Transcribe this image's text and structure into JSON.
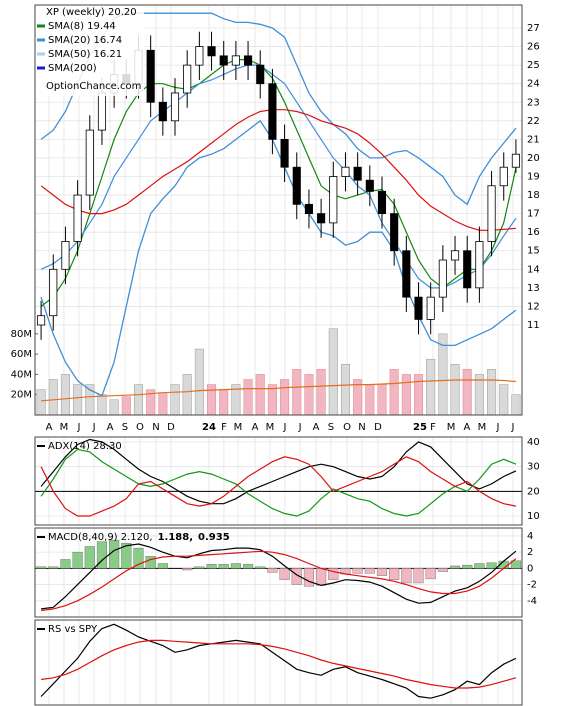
{
  "chart_data": [
    {
      "type": "candlestick",
      "title": "XP (weekly) 20.20",
      "watermark": "OptionChance.com",
      "xlim": [
        -0.5,
        39.5
      ],
      "xticks": [
        {
          "value": 0.65,
          "label": "A"
        },
        {
          "value": 1.88,
          "label": "M"
        },
        {
          "value": 3.11,
          "label": "J"
        },
        {
          "value": 4.35,
          "label": "J"
        },
        {
          "value": 5.66,
          "label": "A"
        },
        {
          "value": 6.89,
          "label": "S"
        },
        {
          "value": 8.12,
          "label": "O"
        },
        {
          "value": 9.44,
          "label": "N"
        },
        {
          "value": 10.67,
          "label": "D"
        },
        {
          "value": 13.79,
          "label": "24"
        },
        {
          "value": 15.02,
          "label": "F"
        },
        {
          "value": 16.17,
          "label": "M"
        },
        {
          "value": 17.57,
          "label": "A"
        },
        {
          "value": 18.8,
          "label": "M"
        },
        {
          "value": 20.03,
          "label": "J"
        },
        {
          "value": 21.27,
          "label": "J"
        },
        {
          "value": 22.58,
          "label": "A"
        },
        {
          "value": 23.81,
          "label": "S"
        },
        {
          "value": 25.13,
          "label": "O"
        },
        {
          "value": 26.36,
          "label": "N"
        },
        {
          "value": 27.67,
          "label": "D"
        },
        {
          "value": 31.12,
          "label": "25"
        },
        {
          "value": 32.19,
          "label": "F"
        },
        {
          "value": 33.67,
          "label": "M"
        },
        {
          "value": 34.98,
          "label": "A"
        },
        {
          "value": 36.21,
          "label": "M"
        },
        {
          "value": 37.53,
          "label": "J"
        },
        {
          "value": 38.76,
          "label": "J"
        }
      ],
      "ylim": [
        6.15,
        28.24
      ],
      "yticks": [
        11,
        12,
        13,
        14,
        15,
        16,
        17,
        18,
        19,
        20,
        21,
        22,
        23,
        24,
        25,
        26,
        27
      ],
      "open": [
        11,
        11.5,
        14,
        15.5,
        18,
        21.5,
        23.5,
        24.5,
        24,
        25.8,
        23,
        22,
        23.5,
        25,
        26,
        25.5,
        25,
        25.5,
        25,
        24,
        21,
        19.5,
        17.5,
        17,
        16.5,
        19,
        19.5,
        18.8,
        18.2,
        17,
        15,
        12.5,
        11.3,
        12.5,
        14.5,
        15,
        13,
        15.5,
        18.5,
        19.5
      ],
      "high": [
        12.3,
        14.8,
        16.3,
        18.8,
        22.3,
        24.3,
        25.3,
        25.3,
        26.6,
        26.6,
        23.8,
        24.3,
        25.8,
        26.8,
        26.8,
        26.3,
        26.3,
        26.3,
        25.8,
        24.8,
        21.8,
        20.3,
        18.3,
        17.8,
        19.8,
        20.3,
        20.3,
        19.6,
        19,
        17.8,
        15.8,
        13.3,
        13.3,
        15.3,
        15.8,
        15.8,
        16.3,
        19.3,
        20.3,
        21
      ],
      "low": [
        10.2,
        10.7,
        13.2,
        14.7,
        17.2,
        20.7,
        22.7,
        23.2,
        23.2,
        22.2,
        21.2,
        21.2,
        22.7,
        24.2,
        24.7,
        24.2,
        24.2,
        24.2,
        23.2,
        20.2,
        18.7,
        16.7,
        16.2,
        15.7,
        15.7,
        18.2,
        18,
        17.4,
        16.2,
        14.2,
        11.7,
        10.5,
        10.5,
        11.7,
        13.7,
        12.2,
        12.2,
        14.7,
        17.7,
        19.2
      ],
      "close": [
        11.5,
        14,
        15.5,
        18,
        21.5,
        23.5,
        24.5,
        24,
        25.8,
        23,
        22,
        23.5,
        25,
        26,
        25.5,
        25,
        25.5,
        25,
        24,
        21,
        19.5,
        17.5,
        17,
        16.5,
        19,
        19.5,
        18.8,
        18.2,
        17,
        15,
        12.5,
        11.3,
        12.5,
        14.5,
        15,
        13,
        15.5,
        18.5,
        19.5,
        20.2
      ],
      "up_color": "#ffffff",
      "down_color": "#000000",
      "bands": {
        "color": "#3d8fd6",
        "upper": [
          21,
          21.5,
          22.5,
          24,
          25.5,
          26.5,
          27.5,
          27.8,
          27.8,
          27.8,
          27.8,
          27.8,
          27.8,
          27.8,
          27.8,
          27.5,
          27.3,
          27.3,
          27.2,
          27,
          26.5,
          25,
          23.5,
          22.5,
          21.8,
          21.3,
          20.5,
          20,
          20,
          20.3,
          20.4,
          20,
          19.5,
          19,
          18,
          17.5,
          19,
          20,
          20.8,
          21.6
        ],
        "lower": [
          12.5,
          10.5,
          9,
          8,
          7.5,
          7.2,
          9,
          12,
          15,
          17,
          17.8,
          18.5,
          19.5,
          20,
          20.2,
          20.5,
          21,
          21.5,
          22,
          21,
          19.5,
          18,
          17,
          16,
          15.8,
          15.3,
          15.5,
          16,
          16,
          15,
          13,
          11.5,
          10.2,
          9.9,
          9.9,
          10.2,
          10.5,
          10.8,
          11.3,
          11.8
        ]
      },
      "series": [
        {
          "name": "SMA(8) 19.44",
          "color": "#118811",
          "values": [
            12,
            12.5,
            13.5,
            15,
            17,
            19,
            21,
            22.5,
            23.5,
            24,
            24,
            23.8,
            23.7,
            24,
            24.5,
            25,
            25.3,
            25.3,
            25,
            24.3,
            23,
            21.5,
            20,
            18.5,
            18,
            17.8,
            18,
            18.2,
            18.3,
            17.5,
            16,
            14.5,
            13.5,
            13,
            13.5,
            14,
            14,
            15,
            16.5,
            19.44
          ]
        },
        {
          "name": "SMA(20) 16.74",
          "color": "#3d8fd6",
          "values": [
            14,
            14.3,
            14.8,
            15.5,
            16.5,
            17.5,
            19,
            20,
            21,
            22,
            22.5,
            23,
            23.5,
            24,
            24.2,
            24.5,
            24.8,
            25,
            25,
            24.5,
            24,
            23,
            22,
            21,
            20,
            19.3,
            18.5,
            18,
            16.5,
            15.5,
            14.5,
            13.5,
            13,
            13,
            13.3,
            13.7,
            14,
            14.8,
            15.8,
            16.74
          ]
        },
        {
          "name": "SMA(50) 16.21",
          "color": "#dd1111",
          "legend_color": "#a8d0ee",
          "values": [
            18.5,
            18,
            17.5,
            17.2,
            17,
            17,
            17.2,
            17.5,
            18,
            18.5,
            19,
            19.4,
            19.8,
            20.3,
            20.8,
            21.3,
            21.8,
            22.2,
            22.5,
            22.6,
            22.6,
            22.5,
            22.3,
            22,
            21.8,
            21.6,
            21.3,
            20.8,
            20.2,
            19.5,
            18.8,
            18,
            17.4,
            17,
            16.6,
            16.3,
            16.1,
            16.1,
            16.15,
            16.21
          ]
        }
      ],
      "legend_extra": [
        {
          "name": "SMA(200)",
          "color": "#1a1acc"
        }
      ],
      "volume": {
        "ylim": [
          0,
          404
        ],
        "yticks": [
          {
            "value": 20,
            "label": "20M"
          },
          {
            "value": 40,
            "label": "40M"
          },
          {
            "value": 60,
            "label": "60M"
          },
          {
            "value": 80,
            "label": "80M"
          }
        ],
        "up_color": "#d9d9d9",
        "down_color": "#f2b6c3",
        "avg_color": "#e07020",
        "values": [
          25,
          35,
          40,
          30,
          30,
          20,
          15,
          18,
          30,
          25,
          22,
          30,
          40,
          65,
          30,
          25,
          30,
          35,
          40,
          30,
          35,
          45,
          40,
          45,
          85,
          50,
          35,
          30,
          30,
          45,
          40,
          40,
          55,
          80,
          50,
          45,
          40,
          45,
          30,
          20
        ],
        "avg": [
          14,
          15,
          16,
          17,
          18,
          18.5,
          19,
          19.5,
          20,
          21,
          22,
          22.5,
          23,
          24,
          24.5,
          25,
          25.5,
          26,
          26,
          26,
          27,
          27.5,
          28,
          28.5,
          29,
          29.5,
          30,
          30,
          30.5,
          31,
          32,
          33,
          33.5,
          34,
          34.5,
          34.5,
          34.5,
          34.5,
          34,
          33
        ]
      }
    },
    {
      "type": "line",
      "title": "ADX(14) 28.30",
      "ylim": [
        6.35,
        42.03
      ],
      "yticks": [
        10,
        20,
        30,
        40
      ],
      "ref_line": 20,
      "series": [
        {
          "color": "#000000",
          "values": [
            22,
            28,
            34,
            39,
            41,
            40,
            37,
            33,
            29,
            26,
            24,
            21,
            18,
            16,
            15,
            15,
            17,
            20,
            22,
            24,
            26,
            28,
            30,
            31,
            30,
            28,
            26,
            25,
            26,
            30,
            36,
            40,
            38,
            33,
            28,
            23,
            21,
            23,
            26,
            28.3
          ]
        },
        {
          "color": "#119911",
          "values": [
            18,
            25,
            33,
            37,
            36,
            32,
            29,
            26,
            23,
            22,
            23,
            25,
            27,
            28,
            27,
            25,
            23,
            19,
            16,
            13,
            11,
            10,
            12,
            17,
            21,
            19,
            17,
            16,
            13,
            11,
            10,
            11,
            15,
            19,
            22,
            20,
            25,
            31,
            33,
            31
          ]
        },
        {
          "color": "#dd1111",
          "values": [
            30,
            20,
            13,
            10,
            10,
            12,
            14,
            17,
            23,
            24,
            21,
            18,
            15,
            14,
            15,
            18,
            22,
            26,
            29,
            32,
            34,
            33,
            31,
            26,
            20,
            22,
            24,
            26,
            28,
            31,
            34,
            32,
            28,
            25,
            22,
            24,
            20,
            17,
            15,
            14
          ]
        }
      ]
    },
    {
      "type": "line",
      "title": "MACD(8,40,9) 2.120,",
      "ylim": [
        -6,
        4.98
      ],
      "yticks": [
        -4,
        -2,
        0,
        2,
        4
      ],
      "ref_line": 0,
      "series": [
        {
          "type": "histogram",
          "color": "#1a55cc",
          "label": "0.935",
          "pos_color": "#88cc88",
          "neg_color": "#f2b6c3",
          "values": [
            0.2,
            0.2,
            1.1,
            2,
            2.7,
            3.3,
            3.5,
            3.1,
            2.5,
            1.5,
            0.6,
            0,
            -0.2,
            0.2,
            0.5,
            0.5,
            0.6,
            0.5,
            0.2,
            -0.5,
            -1.4,
            -2,
            -2.2,
            -2.1,
            -1.4,
            -0.7,
            -0.6,
            -0.6,
            -0.9,
            -1.4,
            -1.8,
            -1.8,
            -1.3,
            -0.4,
            0.3,
            0.4,
            0.6,
            0.7,
            0.9,
            0.935
          ]
        },
        {
          "color": "#000000",
          "values": [
            -5,
            -4.8,
            -3.5,
            -2,
            -0.5,
            1,
            2.2,
            2.8,
            3,
            2.6,
            2,
            1.5,
            1.3,
            1.8,
            2.2,
            2.3,
            2.5,
            2.5,
            2.3,
            1.5,
            0.3,
            -0.8,
            -1.6,
            -2.1,
            -1.8,
            -1.4,
            -1.5,
            -1.7,
            -2.2,
            -3,
            -3.8,
            -4.3,
            -4.2,
            -3.5,
            -2.8,
            -2.4,
            -1.6,
            -0.5,
            0.9,
            2.12
          ]
        },
        {
          "color": "#dd1111",
          "label": "1.188,",
          "values": [
            -5.2,
            -5,
            -4.6,
            -4,
            -3.2,
            -2.3,
            -1.3,
            -0.3,
            0.5,
            1.1,
            1.4,
            1.5,
            1.5,
            1.6,
            1.7,
            1.8,
            1.9,
            2,
            2.1,
            2,
            1.7,
            1.2,
            0.6,
            0,
            -0.4,
            -0.7,
            -0.9,
            -1.1,
            -1.3,
            -1.6,
            -2,
            -2.5,
            -2.9,
            -3.1,
            -3.1,
            -2.8,
            -2.2,
            -1.2,
            0,
            1.188
          ]
        }
      ]
    },
    {
      "type": "line",
      "title": "RS vs SPY",
      "ylim": [
        0,
        100
      ],
      "series": [
        {
          "color": "#000000",
          "values": [
            10,
            25,
            40,
            55,
            75,
            90,
            95,
            88,
            80,
            75,
            70,
            62,
            65,
            70,
            72,
            74,
            76,
            74,
            72,
            62,
            52,
            42,
            38,
            35,
            42,
            45,
            38,
            34,
            30,
            25,
            20,
            10,
            8,
            12,
            18,
            28,
            24,
            38,
            48,
            55
          ]
        },
        {
          "color": "#dd1111",
          "values": [
            30,
            32,
            36,
            42,
            50,
            58,
            65,
            70,
            74,
            76,
            76,
            75,
            74,
            73,
            72,
            72,
            72,
            72,
            71,
            69,
            66,
            62,
            58,
            53,
            49,
            46,
            43,
            40,
            37,
            34,
            30,
            27,
            24,
            22,
            20,
            20,
            21,
            24,
            28,
            32
          ]
        }
      ]
    }
  ]
}
